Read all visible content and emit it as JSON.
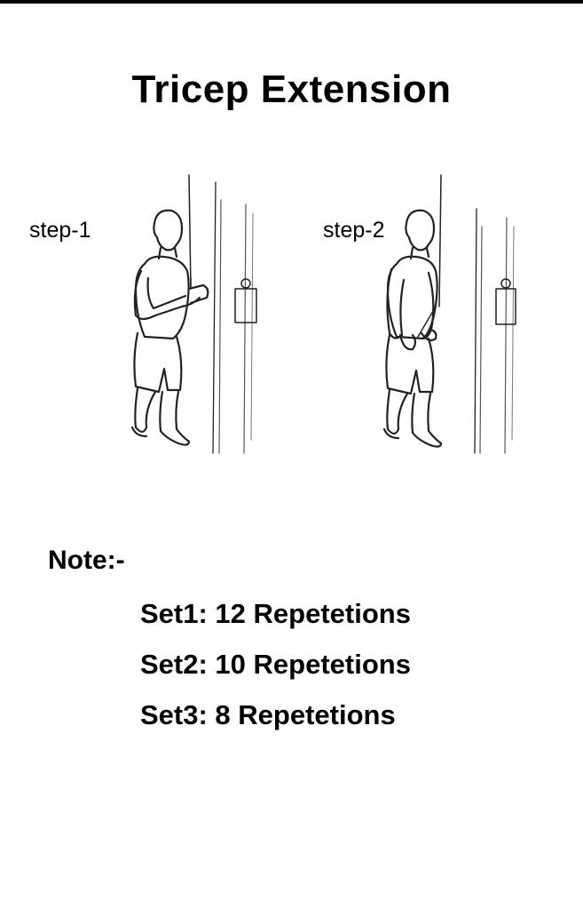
{
  "page": {
    "title": "Tricep Extension"
  },
  "steps": [
    {
      "label": "step-1",
      "icon": "tricep-extension-start-illustration"
    },
    {
      "label": "step-2",
      "icon": "tricep-extension-end-illustration"
    }
  ],
  "note": {
    "heading": "Note:-",
    "sets": [
      {
        "text": "Set1: 12 Repetetions"
      },
      {
        "text": "Set2: 10 Repetetions"
      },
      {
        "text": "Set3: 8 Repetetions"
      }
    ]
  },
  "colors": {
    "background": "#ffffff",
    "text": "#000000",
    "sketch": "#222222"
  }
}
